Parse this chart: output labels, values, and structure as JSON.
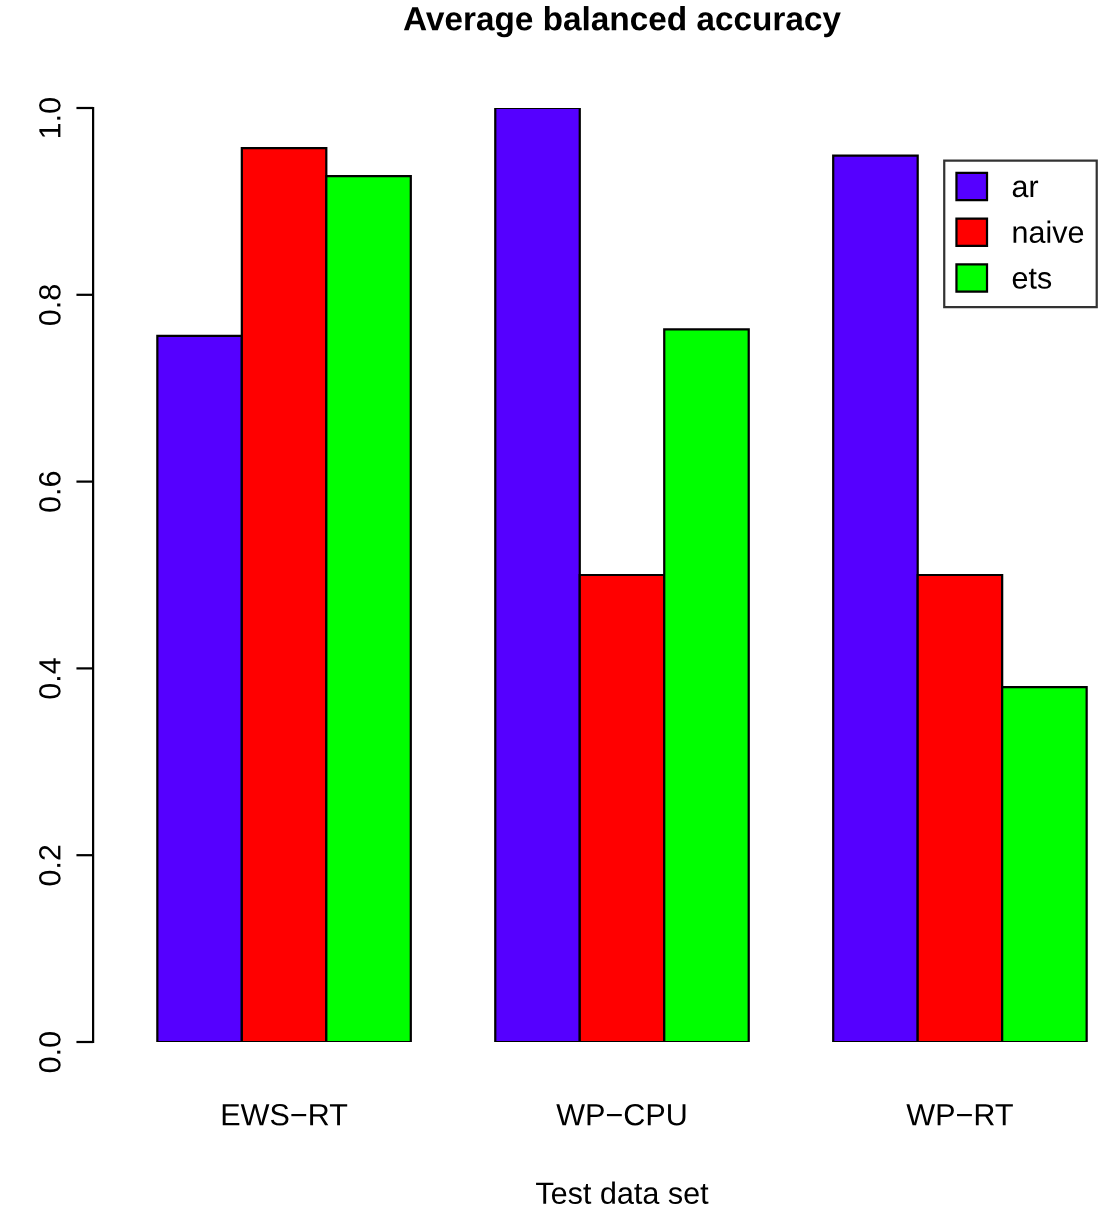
{
  "chart_data": {
    "type": "bar",
    "title": "Average balanced accuracy",
    "xlabel": "Test data set",
    "categories": [
      "EWS−RT",
      "WP−CPU",
      "WP−RT"
    ],
    "series": [
      {
        "name": "ar",
        "color": "#5500ff",
        "values": [
          0.756,
          1.0,
          0.949
        ]
      },
      {
        "name": "naive",
        "color": "#ff0000",
        "values": [
          0.957,
          0.5,
          0.5
        ]
      },
      {
        "name": "ets",
        "color": "#00ff00",
        "values": [
          0.927,
          0.763,
          0.38
        ]
      }
    ],
    "ylim": [
      0,
      1.0
    ],
    "yticks": [
      {
        "value": 0,
        "label": "0.0"
      },
      0.2,
      0.4,
      0.6,
      0.8,
      {
        "value": 1,
        "label": "1.0"
      }
    ],
    "grid": false,
    "legend": "top right"
  }
}
